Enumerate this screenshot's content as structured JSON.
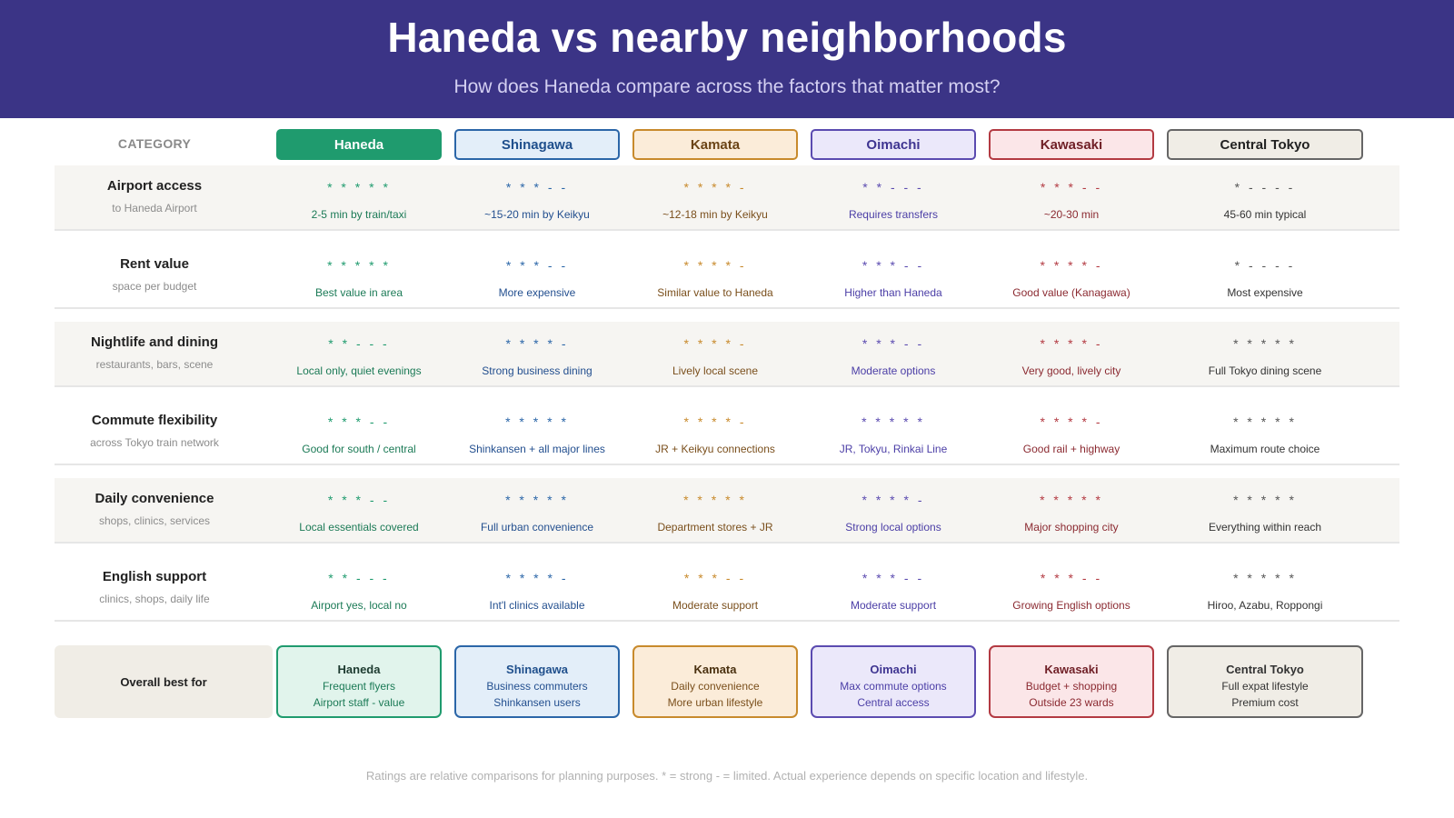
{
  "header": {
    "title": "Haneda vs nearby neighborhoods",
    "subtitle": "How does Haneda compare across the factors that matter most?"
  },
  "table": {
    "category_label": "CATEGORY",
    "columns": [
      {
        "name": "Haneda",
        "accent": "#1f9b6e"
      },
      {
        "name": "Shinagawa",
        "accent": "#2b66a8"
      },
      {
        "name": "Kamata",
        "accent": "#c88a2c"
      },
      {
        "name": "Oimachi",
        "accent": "#5b4bb0"
      },
      {
        "name": "Kawasaki",
        "accent": "#b33a42"
      },
      {
        "name": "Central Tokyo",
        "accent": "#555555"
      }
    ],
    "rows": [
      {
        "name": "Airport access",
        "sub": "to Haneda Airport",
        "cells": [
          {
            "rating": "* * * * *",
            "note": "2-5 min by train/taxi"
          },
          {
            "rating": "* * * - -",
            "note": "~15-20 min by Keikyu"
          },
          {
            "rating": "* * * * -",
            "note": "~12-18 min by Keikyu"
          },
          {
            "rating": "* * - - -",
            "note": "Requires transfers"
          },
          {
            "rating": "* * * - -",
            "note": "~20-30 min"
          },
          {
            "rating": "* - - - -",
            "note": "45-60 min typical"
          }
        ]
      },
      {
        "name": "Rent value",
        "sub": "space per budget",
        "cells": [
          {
            "rating": "* * * * *",
            "note": "Best value in area"
          },
          {
            "rating": "* * * - -",
            "note": "More expensive"
          },
          {
            "rating": "* * * * -",
            "note": "Similar value to Haneda"
          },
          {
            "rating": "* * * - -",
            "note": "Higher than Haneda"
          },
          {
            "rating": "* * * * -",
            "note": "Good value (Kanagawa)"
          },
          {
            "rating": "* - - - -",
            "note": "Most expensive"
          }
        ]
      },
      {
        "name": "Nightlife and dining",
        "sub": "restaurants, bars, scene",
        "cells": [
          {
            "rating": "* * - - -",
            "note": "Local only, quiet evenings"
          },
          {
            "rating": "* * * * -",
            "note": "Strong business dining"
          },
          {
            "rating": "* * * * -",
            "note": "Lively local scene"
          },
          {
            "rating": "* * * - -",
            "note": "Moderate options"
          },
          {
            "rating": "* * * * -",
            "note": "Very good, lively city"
          },
          {
            "rating": "* * * * *",
            "note": "Full Tokyo dining scene"
          }
        ]
      },
      {
        "name": "Commute flexibility",
        "sub": "across Tokyo train network",
        "cells": [
          {
            "rating": "* * * - -",
            "note": "Good for south / central"
          },
          {
            "rating": "* * * * *",
            "note": "Shinkansen + all major lines"
          },
          {
            "rating": "* * * * -",
            "note": "JR + Keikyu connections"
          },
          {
            "rating": "* * * * *",
            "note": "JR, Tokyu, Rinkai Line"
          },
          {
            "rating": "* * * * -",
            "note": "Good rail + highway"
          },
          {
            "rating": "* * * * *",
            "note": "Maximum route choice"
          }
        ]
      },
      {
        "name": "Daily convenience",
        "sub": "shops, clinics, services",
        "cells": [
          {
            "rating": "* * * - -",
            "note": "Local essentials covered"
          },
          {
            "rating": "* * * * *",
            "note": "Full urban convenience"
          },
          {
            "rating": "* * * * *",
            "note": "Department stores + JR"
          },
          {
            "rating": "* * * * -",
            "note": "Strong local options"
          },
          {
            "rating": "* * * * *",
            "note": "Major shopping city"
          },
          {
            "rating": "* * * * *",
            "note": "Everything within reach"
          }
        ]
      },
      {
        "name": "English support",
        "sub": "clinics, shops, daily life",
        "cells": [
          {
            "rating": "* * - - -",
            "note": "Airport yes, local no"
          },
          {
            "rating": "* * * * -",
            "note": "Int'l clinics available"
          },
          {
            "rating": "* * * - -",
            "note": "Moderate support"
          },
          {
            "rating": "* * * - -",
            "note": "Moderate support"
          },
          {
            "rating": "* * * - -",
            "note": "Growing English options"
          },
          {
            "rating": "* * * * *",
            "note": "Hiroo, Azabu, Roppongi"
          }
        ]
      }
    ]
  },
  "summary": {
    "label": "Overall best for",
    "cards": [
      {
        "name": "Haneda",
        "line1": "Frequent flyers",
        "line2": "Airport staff - value"
      },
      {
        "name": "Shinagawa",
        "line1": "Business commuters",
        "line2": "Shinkansen users"
      },
      {
        "name": "Kamata",
        "line1": "Daily convenience",
        "line2": "More urban lifestyle"
      },
      {
        "name": "Oimachi",
        "line1": "Max commute options",
        "line2": "Central access"
      },
      {
        "name": "Kawasaki",
        "line1": "Budget + shopping",
        "line2": "Outside 23 wards"
      },
      {
        "name": "Central Tokyo",
        "line1": "Full expat lifestyle",
        "line2": "Premium cost"
      }
    ]
  },
  "footnote": "Ratings are relative comparisons for planning purposes. * = strong - = limited. Actual experience depends on specific location and lifestyle."
}
